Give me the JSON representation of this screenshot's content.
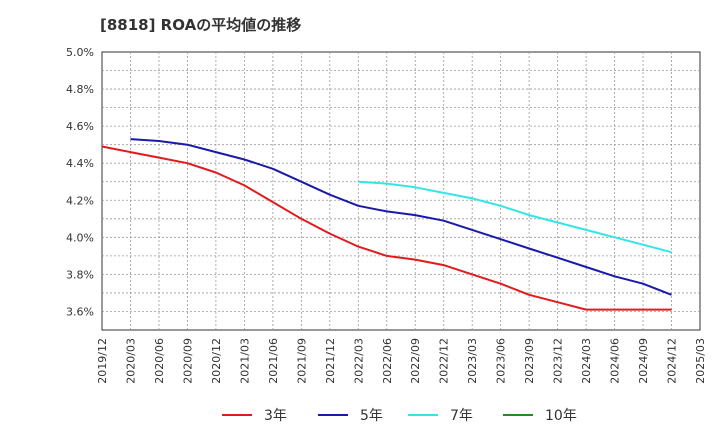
{
  "chart_data": {
    "type": "line",
    "title": "[8818]  ROAの平均値の推移",
    "xlabel": "",
    "ylabel": "",
    "x": [
      "2019/12",
      "2020/03",
      "2020/06",
      "2020/09",
      "2020/12",
      "2021/03",
      "2021/06",
      "2021/09",
      "2021/12",
      "2022/03",
      "2022/06",
      "2022/09",
      "2022/12",
      "2023/03",
      "2023/06",
      "2023/09",
      "2023/12",
      "2024/03",
      "2024/06",
      "2024/09",
      "2024/12",
      "2025/03"
    ],
    "y_ticks": [
      "3.6%",
      "3.8%",
      "4.0%",
      "4.2%",
      "4.4%",
      "4.6%",
      "4.8%",
      "5.0%"
    ],
    "ylim": [
      3.5,
      5.0
    ],
    "grid": true,
    "legend_position": "bottom",
    "series": [
      {
        "name": "3年",
        "color": "#e31a1c",
        "values": [
          4.49,
          4.46,
          4.43,
          4.4,
          4.35,
          4.28,
          4.19,
          4.1,
          4.02,
          3.95,
          3.9,
          3.88,
          3.85,
          3.8,
          3.75,
          3.69,
          3.65,
          3.61,
          3.61,
          3.61,
          3.61,
          null
        ]
      },
      {
        "name": "5年",
        "color": "#1a1aaa",
        "values": [
          null,
          4.53,
          4.52,
          4.5,
          4.46,
          4.42,
          4.37,
          4.3,
          4.23,
          4.17,
          4.14,
          4.12,
          4.09,
          4.04,
          3.99,
          3.94,
          3.89,
          3.84,
          3.79,
          3.75,
          3.69,
          null
        ]
      },
      {
        "name": "7年",
        "color": "#33e6e6",
        "values": [
          null,
          null,
          null,
          null,
          null,
          null,
          null,
          null,
          null,
          4.3,
          4.29,
          4.27,
          4.24,
          4.21,
          4.17,
          4.12,
          4.08,
          4.04,
          4.0,
          3.96,
          3.92,
          null
        ]
      },
      {
        "name": "10年",
        "color": "#228b22",
        "values": [
          null,
          null,
          null,
          null,
          null,
          null,
          null,
          null,
          null,
          null,
          null,
          null,
          null,
          null,
          null,
          null,
          null,
          null,
          null,
          null,
          null,
          null
        ]
      }
    ]
  }
}
